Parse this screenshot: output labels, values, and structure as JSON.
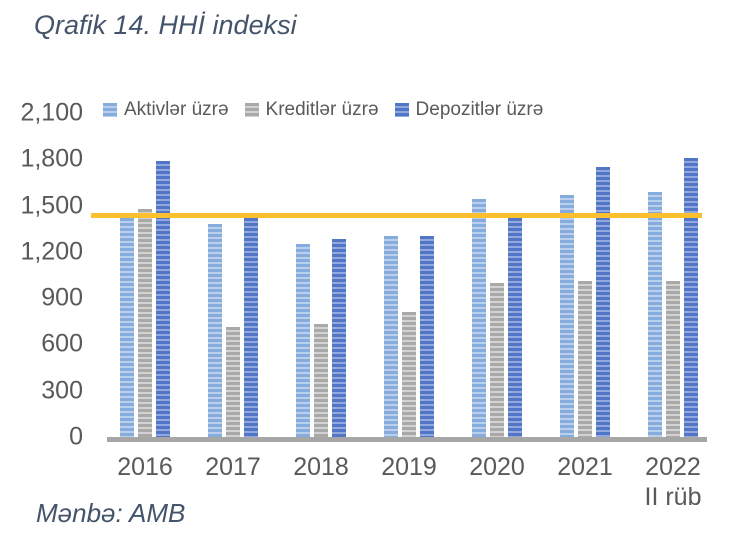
{
  "title": "Qrafik 14. HHİ indeksi",
  "source": "Mənbə: AMB",
  "colors": {
    "title_text": "#44546A",
    "axis_text": "#595959",
    "axis_line": "#A6A6A6",
    "threshold_line": "#FCC02E"
  },
  "chart_data": {
    "type": "bar",
    "title": "Qrafik 14. HHİ indeksi",
    "xlabel": "",
    "ylabel": "",
    "ylim": [
      0,
      2100
    ],
    "ytick_step": 300,
    "ytick_labels": [
      "0",
      "300",
      "600",
      "900",
      "1,200",
      "1,500",
      "1,800",
      "2,100"
    ],
    "grid": false,
    "legend_position": "top",
    "categories": [
      "2016",
      "2017",
      "2018",
      "2019",
      "2020",
      "2021",
      "2022"
    ],
    "x_note": {
      "category": "2022",
      "text": "II rüb"
    },
    "series": [
      {
        "name": "Aktivlər üzrə",
        "color": "#85ACDC",
        "stripe_color": "#B9CFEC",
        "values": [
          1420,
          1380,
          1250,
          1300,
          1540,
          1570,
          1590
        ]
      },
      {
        "name": "Kreditlər üzrə",
        "color": "#A9A9A9",
        "stripe_color": "#D2D2D2",
        "values": [
          1480,
          710,
          730,
          810,
          1000,
          1010,
          1010
        ]
      },
      {
        "name": "Depozitlər üzrə",
        "color": "#5276C7",
        "stripe_color": "#93A9DE",
        "values": [
          1790,
          1420,
          1280,
          1300,
          1420,
          1750,
          1810
        ]
      }
    ],
    "threshold_line": {
      "value": 1440,
      "color": "#FCC02E"
    }
  }
}
